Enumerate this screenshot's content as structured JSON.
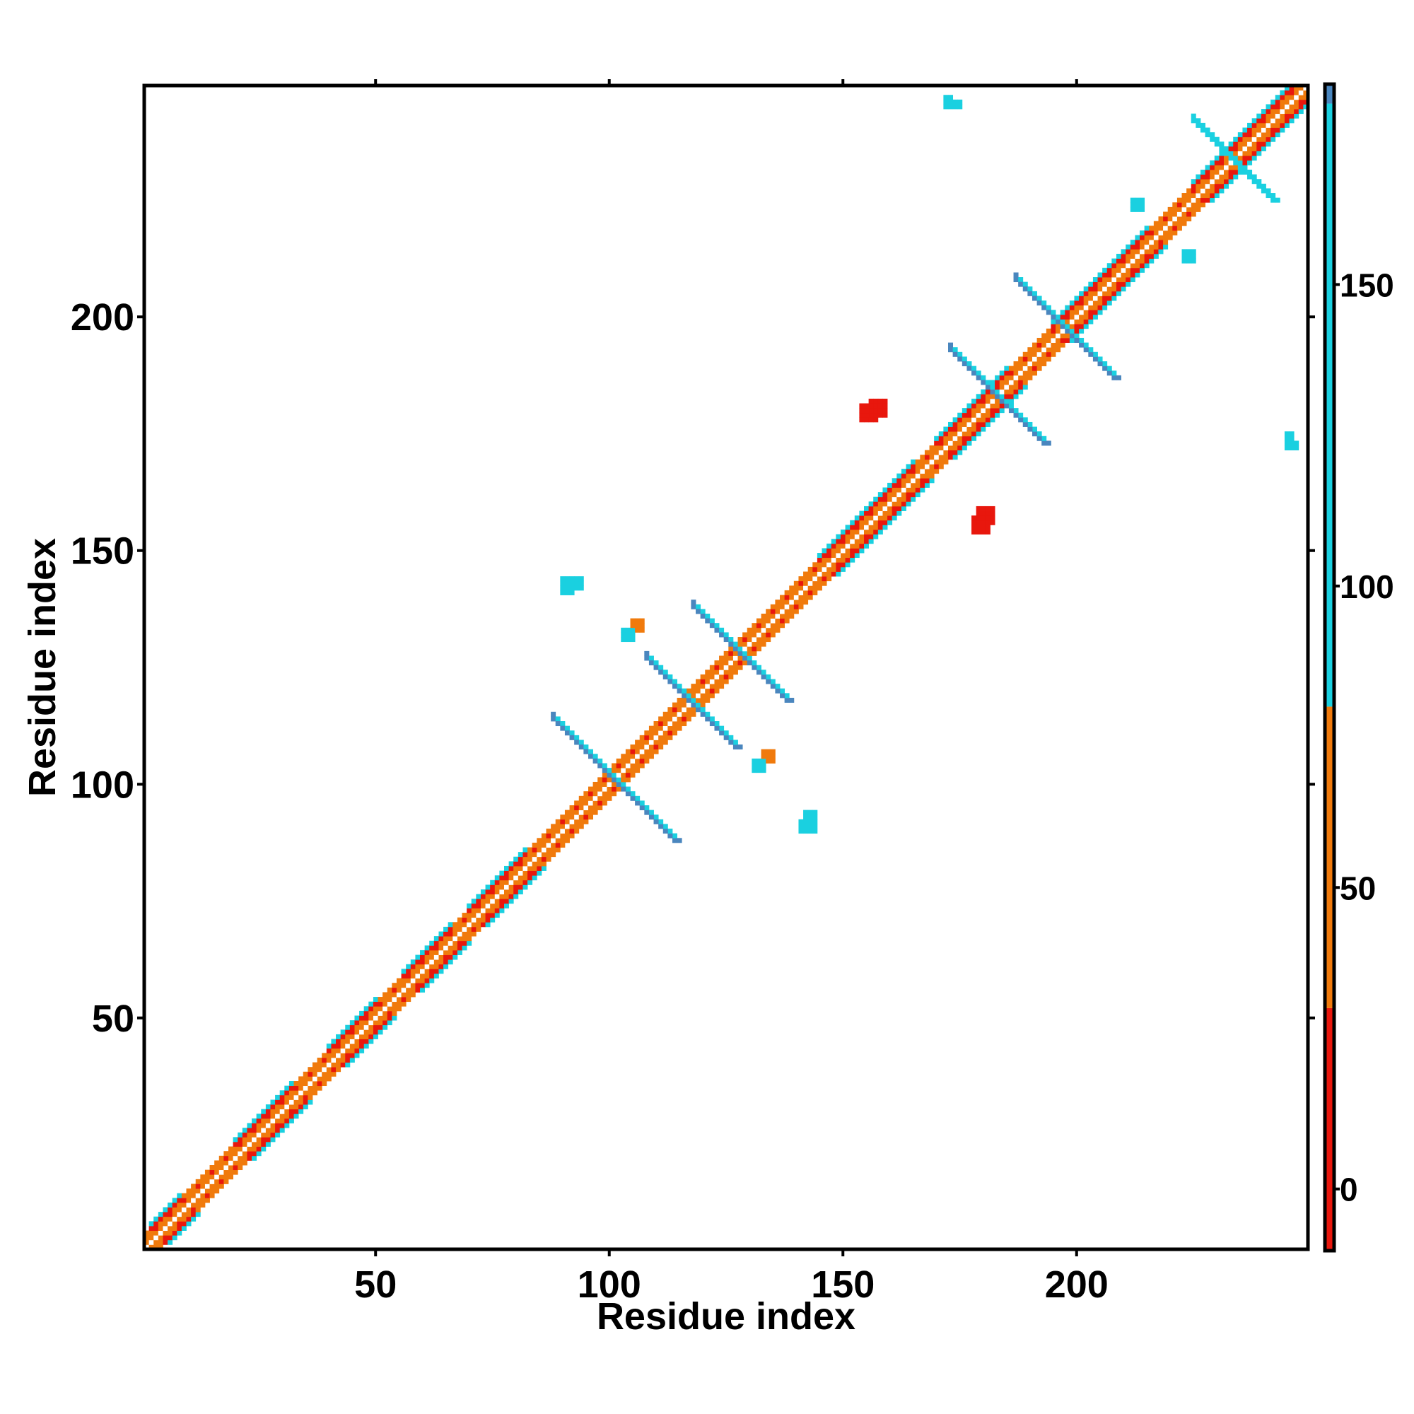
{
  "chart_data": {
    "type": "heatmap",
    "xlabel": "Residue index",
    "ylabel": "Residue index",
    "xlim": [
      1,
      249
    ],
    "ylim": [
      1,
      249
    ],
    "x_ticks": [
      50,
      100,
      150,
      200
    ],
    "y_ticks": [
      50,
      100,
      150,
      200
    ],
    "grid": false,
    "symmetric": true,
    "legend": "right colorbar",
    "colorbar": {
      "range": [
        -10,
        183
      ],
      "ticks": [
        0,
        50,
        100,
        150
      ],
      "bands": [
        {
          "from": -10,
          "to": 30,
          "color": "#e8170d"
        },
        {
          "from": 30,
          "to": 80,
          "color": "#f07a0c"
        },
        {
          "from": 80,
          "to": 180,
          "color": "#1ad0e0"
        },
        {
          "from": 180,
          "to": 183,
          "color": "#4a86be"
        }
      ]
    },
    "diagonal": {
      "from": 1,
      "to": 249,
      "offsets": [
        1,
        2,
        3
      ]
    },
    "helix_segments": [
      [
        2,
        8
      ],
      [
        20,
        32
      ],
      [
        40,
        50
      ],
      [
        56,
        66
      ],
      [
        70,
        82
      ],
      [
        145,
        165
      ],
      [
        170,
        185
      ],
      [
        195,
        215
      ],
      [
        225,
        249
      ]
    ],
    "strand_contacts": [
      {
        "center": [
          101,
          101
        ],
        "dir": "anti",
        "from": [
          88,
          114
        ],
        "to": [
          114,
          88
        ],
        "color": "#4a86be"
      },
      {
        "center": [
          120,
          120
        ],
        "dir": "anti",
        "from": [
          108,
          127
        ],
        "to": [
          127,
          108
        ],
        "color": "#4a86be"
      },
      {
        "center": [
          128,
          128
        ],
        "dir": "anti",
        "from": [
          118,
          138
        ],
        "to": [
          138,
          118
        ],
        "color": "#4a86be"
      },
      {
        "center": [
          183,
          183
        ],
        "dir": "anti",
        "from": [
          173,
          193
        ],
        "to": [
          193,
          173
        ],
        "color": "#4a86be"
      },
      {
        "center": [
          197,
          197
        ],
        "dir": "anti",
        "from": [
          187,
          208
        ],
        "to": [
          208,
          187
        ],
        "color": "#4a86be"
      },
      {
        "center": [
          233,
          233
        ],
        "dir": "anti",
        "from": [
          225,
          242
        ],
        "to": [
          242,
          225
        ],
        "color": "#1ad0e0"
      }
    ],
    "patches": [
      {
        "x": 91,
        "y": 142,
        "w": 4,
        "h": 3,
        "color": "#1ad0e0"
      },
      {
        "x": 105,
        "y": 133,
        "w": 3,
        "h": 3,
        "color": "#f07a0c"
      },
      {
        "x": 131,
        "y": 103,
        "w": 3,
        "h": 3,
        "color": "#1ad0e0"
      },
      {
        "x": 141,
        "y": 90,
        "w": 4,
        "h": 3,
        "color": "#1ad0e0"
      },
      {
        "x": 156,
        "y": 179,
        "w": 4,
        "h": 4,
        "color": "#e8170d"
      },
      {
        "x": 178,
        "y": 154,
        "w": 4,
        "h": 4,
        "color": "#e8170d"
      },
      {
        "x": 173,
        "y": 245,
        "w": 3,
        "h": 2,
        "color": "#1ad0e0"
      },
      {
        "x": 245,
        "y": 172,
        "w": 3,
        "h": 2,
        "color": "#1ad0e0"
      },
      {
        "x": 212,
        "y": 223,
        "w": 3,
        "h": 3,
        "color": "#1ad0e0"
      },
      {
        "x": 223,
        "y": 212,
        "w": 3,
        "h": 3,
        "color": "#1ad0e0"
      }
    ]
  }
}
